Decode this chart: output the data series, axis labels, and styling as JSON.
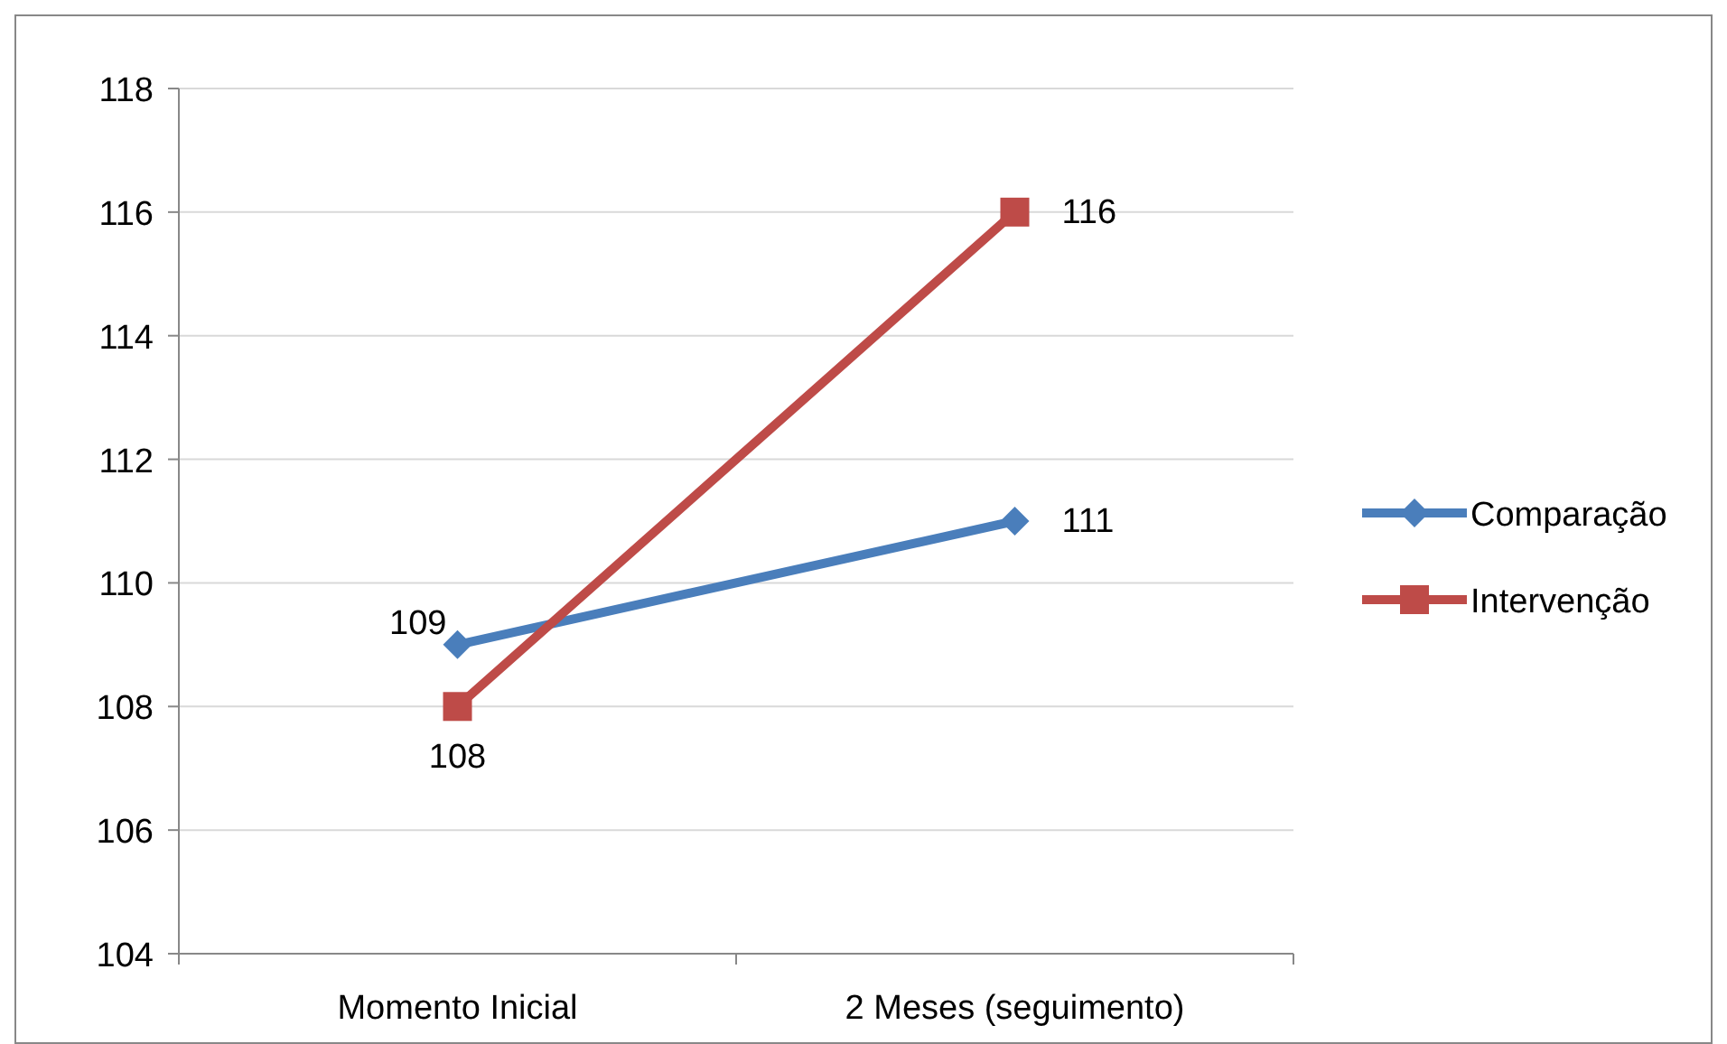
{
  "chart_data": {
    "type": "line",
    "categories": [
      "Momento Inicial",
      "2 Meses (seguimento)"
    ],
    "series": [
      {
        "name": "Comparação",
        "color": "#4a7ebb",
        "values": [
          109,
          111
        ],
        "marker": "diamond"
      },
      {
        "name": "Intervenção",
        "color": "#be4b48",
        "values": [
          108,
          116
        ],
        "marker": "square"
      }
    ],
    "ylim": [
      104,
      118
    ],
    "yticks": [
      104,
      106,
      108,
      110,
      112,
      114,
      116,
      118
    ],
    "grid": "y",
    "legend": "right",
    "data_labels": true
  }
}
